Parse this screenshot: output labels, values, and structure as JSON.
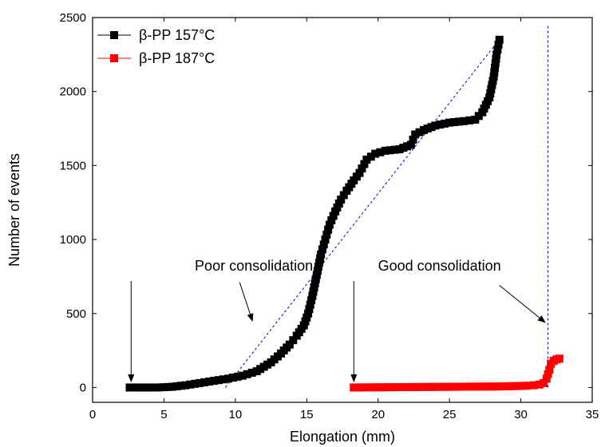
{
  "chart_data": {
    "type": "scatter",
    "xlabel": "Elongation (mm)",
    "ylabel": "Number of events",
    "xlim": [
      0,
      35
    ],
    "ylim": [
      -100,
      2500
    ],
    "xticks": [
      0,
      5,
      10,
      15,
      20,
      25,
      30,
      35
    ],
    "yticks": [
      0,
      500,
      1000,
      1500,
      2000,
      2500
    ],
    "grid": false,
    "legend_position": "top-left",
    "series": [
      {
        "name": "β-PP 157°C",
        "color": "#000000",
        "marker": "square",
        "x": [
          2.6,
          4.6,
          5.6,
          6.5,
          7.5,
          8.5,
          9.5,
          10.5,
          11.5,
          12.5,
          13.2,
          13.8,
          14.3,
          14.8,
          15.1,
          15.4,
          15.7,
          16.0,
          16.3,
          16.6,
          17.0,
          17.4,
          17.8,
          18.3,
          18.7,
          19.2,
          19.8,
          20.5,
          21.5,
          22.3,
          22.6,
          23.2,
          24.0,
          25.0,
          26.0,
          26.8,
          27.3,
          27.8,
          28.1,
          28.3,
          28.5
        ],
        "y": [
          0,
          0,
          5,
          15,
          30,
          45,
          60,
          80,
          110,
          170,
          230,
          290,
          350,
          420,
          500,
          620,
          760,
          900,
          1000,
          1100,
          1190,
          1270,
          1330,
          1400,
          1450,
          1540,
          1580,
          1600,
          1610,
          1640,
          1710,
          1740,
          1770,
          1790,
          1800,
          1810,
          1860,
          1960,
          2100,
          2250,
          2350
        ]
      },
      {
        "name": "β-PP 187°C",
        "color": "#ff0000",
        "marker": "square",
        "x": [
          18.3,
          21.1,
          22.5,
          24.0,
          25.5,
          27.0,
          28.5,
          29.8,
          30.4,
          30.9,
          31.3,
          31.6,
          31.8,
          32.0,
          32.1,
          32.3,
          32.5,
          32.7
        ],
        "y": [
          0,
          2,
          3,
          4,
          5,
          6,
          7,
          10,
          12,
          15,
          20,
          30,
          60,
          120,
          160,
          180,
          190,
          195
        ]
      }
    ],
    "reference_lines": [
      {
        "type": "segment",
        "style": "dashed",
        "color": "#0000cc",
        "x1": 9.3,
        "y1": 0,
        "x2": 28.4,
        "y2": 2340
      },
      {
        "type": "vertical",
        "style": "dashed",
        "color": "#0000cc",
        "x": 31.9,
        "y1": 0,
        "y2": 2460
      }
    ],
    "annotations": [
      {
        "text": "Poor consolidation",
        "text_x": 11.3,
        "text_y": 790,
        "arrows": [
          {
            "x1": 2.7,
            "y1": 720,
            "x2": 2.7,
            "y2": 40
          },
          {
            "x1": 10.3,
            "y1": 710,
            "x2": 11.2,
            "y2": 450
          }
        ]
      },
      {
        "text": "Good consolidation",
        "text_x": 24.3,
        "text_y": 790,
        "arrows": [
          {
            "x1": 18.3,
            "y1": 720,
            "x2": 18.3,
            "y2": 40
          },
          {
            "x1": 28.5,
            "y1": 690,
            "x2": 31.7,
            "y2": 440
          }
        ]
      }
    ]
  }
}
